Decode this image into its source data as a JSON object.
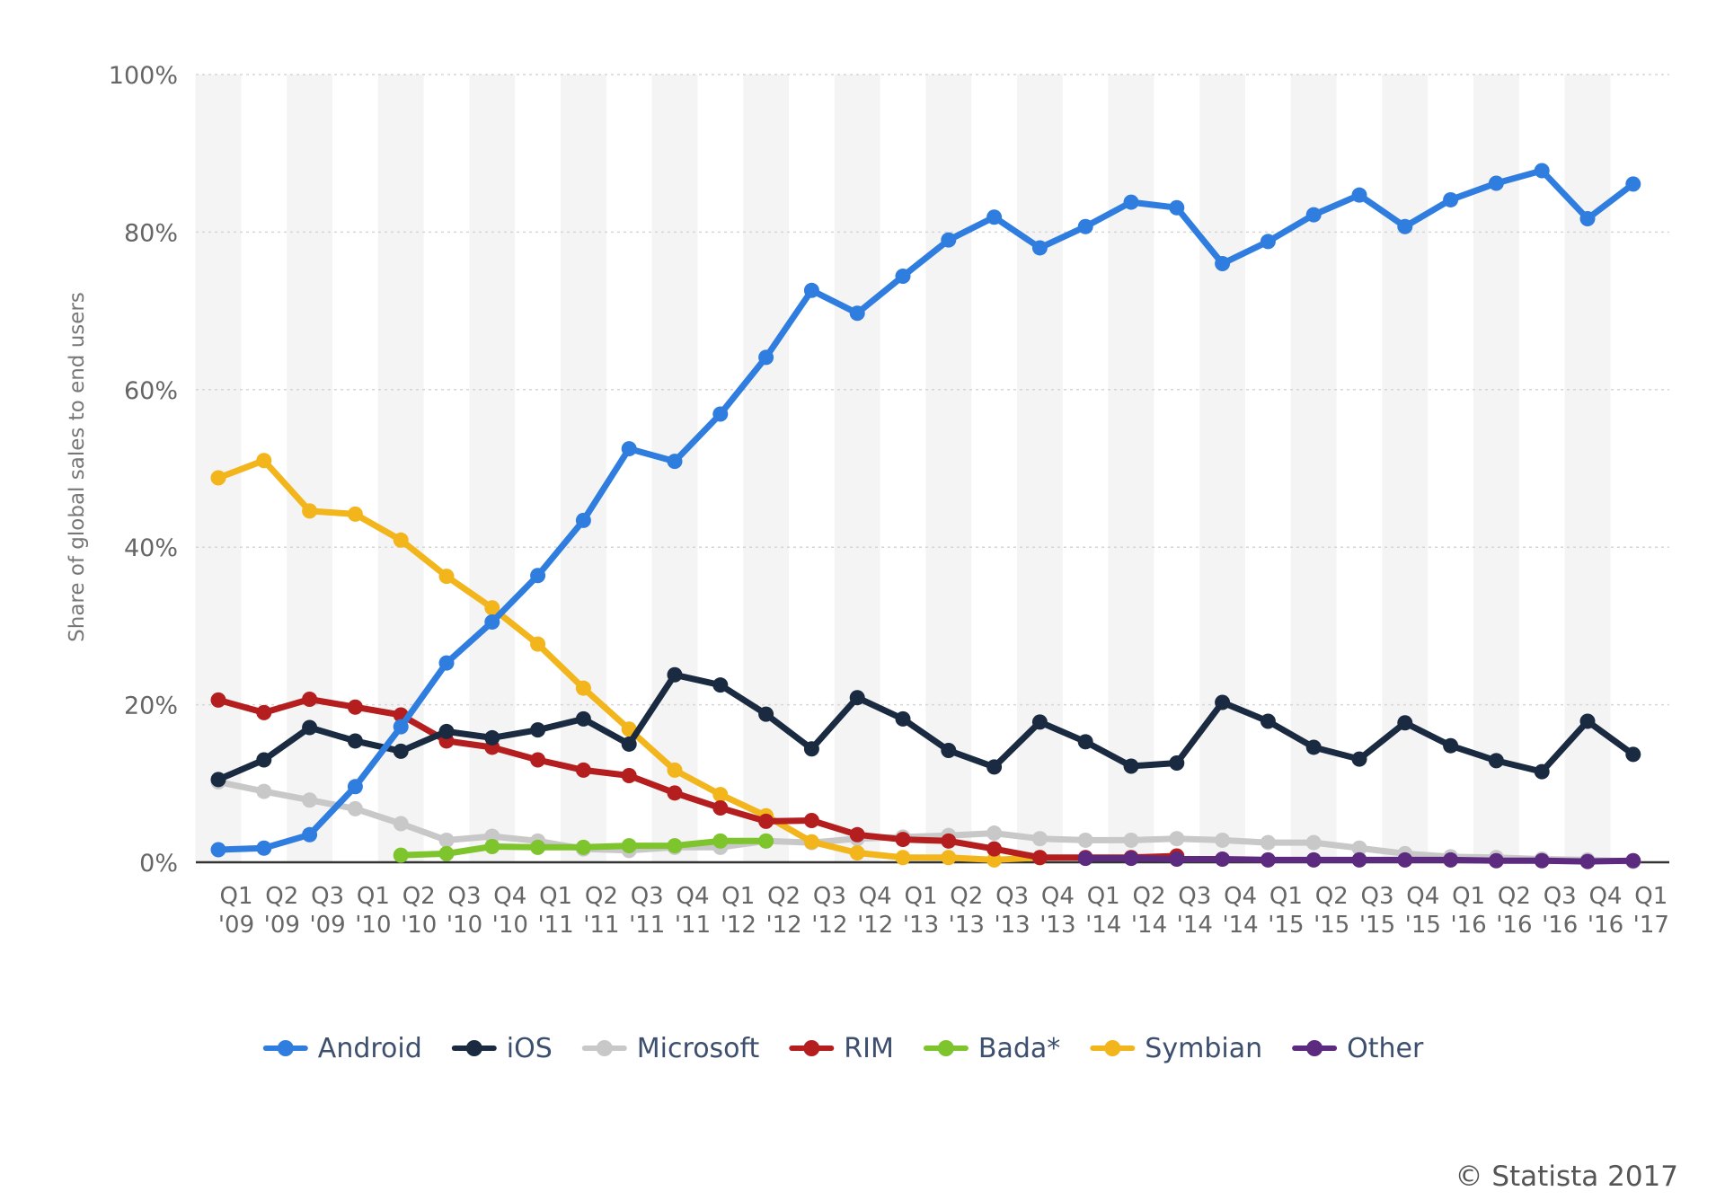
{
  "chart_data": {
    "type": "line",
    "ylabel": "Share of global sales to end users",
    "xlabel": "",
    "ylim": [
      0,
      100
    ],
    "yticks": [
      "0%",
      "20%",
      "40%",
      "60%",
      "80%",
      "100%"
    ],
    "grid": true,
    "legend_position": "bottom-center",
    "categories": [
      [
        "Q1",
        "'09"
      ],
      [
        "Q2",
        "'09"
      ],
      [
        "Q3",
        "'09"
      ],
      [
        "Q1",
        "'10"
      ],
      [
        "Q2",
        "'10"
      ],
      [
        "Q3",
        "'10"
      ],
      [
        "Q4",
        "'10"
      ],
      [
        "Q1",
        "'11"
      ],
      [
        "Q2",
        "'11"
      ],
      [
        "Q3",
        "'11"
      ],
      [
        "Q4",
        "'11"
      ],
      [
        "Q1",
        "'12"
      ],
      [
        "Q2",
        "'12"
      ],
      [
        "Q3",
        "'12"
      ],
      [
        "Q4",
        "'12"
      ],
      [
        "Q1",
        "'13"
      ],
      [
        "Q2",
        "'13"
      ],
      [
        "Q3",
        "'13"
      ],
      [
        "Q4",
        "'13"
      ],
      [
        "Q1",
        "'14"
      ],
      [
        "Q2",
        "'14"
      ],
      [
        "Q3",
        "'14"
      ],
      [
        "Q4",
        "'14"
      ],
      [
        "Q1",
        "'15"
      ],
      [
        "Q2",
        "'15"
      ],
      [
        "Q3",
        "'15"
      ],
      [
        "Q4",
        "'15"
      ],
      [
        "Q1",
        "'16"
      ],
      [
        "Q2",
        "'16"
      ],
      [
        "Q3",
        "'16"
      ],
      [
        "Q4",
        "'16"
      ],
      [
        "Q1",
        "'17"
      ]
    ],
    "series": [
      {
        "name": "Microsoft",
        "color": "#c8c8c8",
        "values": [
          10.2,
          9.0,
          7.9,
          6.8,
          4.9,
          2.8,
          3.3,
          2.7,
          1.7,
          1.5,
          1.9,
          1.9,
          2.7,
          2.5,
          3.0,
          3.2,
          3.4,
          3.7,
          3.0,
          2.8,
          2.8,
          3.0,
          2.8,
          2.5,
          2.5,
          1.8,
          1.1,
          0.7,
          0.6,
          0.4,
          0.3,
          0.1
        ]
      },
      {
        "name": "Bada*",
        "color": "#7dc42d",
        "values": [
          null,
          null,
          null,
          null,
          0.9,
          1.1,
          2.0,
          1.9,
          1.9,
          2.1,
          2.1,
          2.7,
          2.7,
          null,
          null,
          null,
          null,
          null,
          null,
          null,
          null,
          null,
          null,
          null,
          null,
          null,
          null,
          null,
          null,
          null,
          null,
          null
        ]
      },
      {
        "name": "Symbian",
        "color": "#f2b51c",
        "values": [
          48.8,
          51.0,
          44.6,
          44.2,
          40.9,
          36.3,
          32.3,
          27.7,
          22.1,
          16.9,
          11.7,
          8.6,
          5.9,
          2.6,
          1.2,
          0.6,
          0.6,
          0.3,
          0.6,
          null,
          null,
          null,
          null,
          null,
          null,
          null,
          null,
          null,
          null,
          null,
          null,
          null
        ]
      },
      {
        "name": "RIM",
        "color": "#b51e1e",
        "values": [
          20.6,
          19.0,
          20.7,
          19.7,
          18.7,
          15.4,
          14.6,
          13.0,
          11.7,
          11.0,
          8.8,
          6.9,
          5.2,
          5.3,
          3.5,
          2.9,
          2.7,
          1.7,
          0.6,
          0.6,
          0.6,
          0.8,
          null,
          null,
          null,
          null,
          null,
          null,
          null,
          null,
          null,
          null
        ]
      },
      {
        "name": "Other",
        "color": "#5c2a7e",
        "values": [
          null,
          null,
          null,
          null,
          null,
          null,
          null,
          null,
          null,
          null,
          null,
          null,
          null,
          null,
          null,
          null,
          null,
          null,
          null,
          0.5,
          0.5,
          0.4,
          0.4,
          0.3,
          0.3,
          0.3,
          0.3,
          0.3,
          0.2,
          0.2,
          0.1,
          0.2
        ]
      },
      {
        "name": "iOS",
        "color": "#1a2a40",
        "values": [
          10.5,
          13.0,
          17.1,
          15.4,
          14.1,
          16.6,
          15.8,
          16.8,
          18.2,
          15.0,
          23.8,
          22.5,
          18.8,
          14.4,
          20.9,
          18.2,
          14.2,
          12.1,
          17.8,
          15.3,
          12.2,
          12.6,
          20.3,
          17.9,
          14.6,
          13.1,
          17.7,
          14.8,
          12.9,
          11.5,
          17.9,
          13.7
        ]
      },
      {
        "name": "Android",
        "color": "#2f7ddf",
        "values": [
          1.6,
          1.8,
          3.5,
          9.6,
          17.2,
          25.3,
          30.5,
          36.4,
          43.4,
          52.5,
          50.9,
          56.9,
          64.1,
          72.6,
          69.7,
          74.4,
          79.0,
          81.9,
          78.0,
          80.7,
          83.8,
          83.1,
          76.0,
          78.8,
          82.2,
          84.7,
          80.7,
          84.1,
          86.2,
          87.8,
          81.7,
          86.1
        ]
      }
    ],
    "legend_order": [
      "Android",
      "iOS",
      "Microsoft",
      "RIM",
      "Bada*",
      "Symbian",
      "Other"
    ]
  },
  "credit": "© Statista 2017"
}
